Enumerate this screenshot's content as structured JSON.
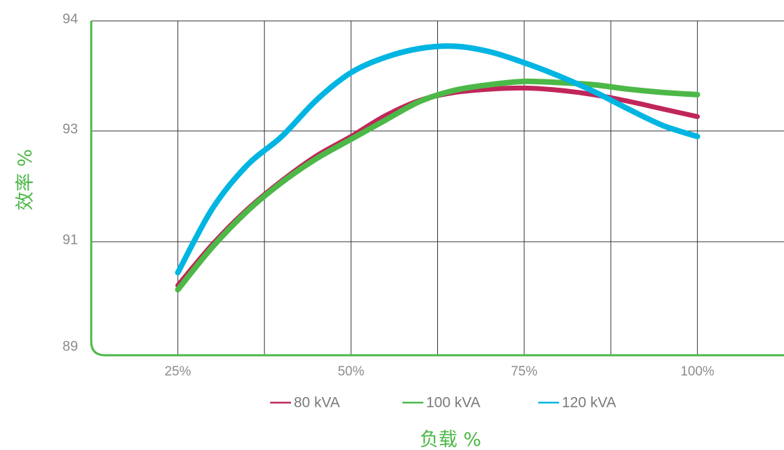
{
  "chart_data": {
    "type": "line",
    "title": "",
    "xlabel": "负载 %",
    "ylabel": "效率 %",
    "x": [
      25,
      50,
      75,
      100
    ],
    "x_tick_labels": [
      "25%",
      "50%",
      "75%",
      "100%"
    ],
    "y_tick_values": [
      89,
      91,
      93,
      94
    ],
    "y_tick_labels": [
      "89",
      "91",
      "93",
      "94"
    ],
    "xlim": [
      12.5,
      112.5
    ],
    "grid": true,
    "legend_position": "bottom",
    "series": [
      {
        "name": "80 kVA",
        "color": "#c0265a",
        "x": [
          25,
          30,
          35,
          40,
          45,
          50,
          55,
          60,
          65,
          70,
          75,
          80,
          85,
          90,
          95,
          100
        ],
        "y": [
          90.18,
          90.95,
          91.58,
          92.1,
          92.55,
          92.9,
          93.14,
          93.28,
          93.35,
          93.38,
          93.39,
          93.37,
          93.33,
          93.27,
          93.2,
          93.13
        ]
      },
      {
        "name": "100 kVA",
        "color": "#4cb847",
        "x": [
          25,
          30,
          35,
          40,
          45,
          50,
          55,
          60,
          65,
          70,
          75,
          80,
          85,
          90,
          95,
          100
        ],
        "y": [
          90.1,
          90.9,
          91.55,
          92.07,
          92.5,
          92.85,
          93.1,
          93.27,
          93.37,
          93.42,
          93.45,
          93.44,
          93.42,
          93.38,
          93.35,
          93.33
        ]
      },
      {
        "name": "120 kVA",
        "color": "#00b5e2",
        "x": [
          25,
          30,
          35,
          40,
          45,
          50,
          55,
          60,
          65,
          70,
          75,
          80,
          85,
          90,
          95,
          100
        ],
        "y": [
          90.42,
          91.6,
          92.38,
          92.9,
          93.28,
          93.53,
          93.67,
          93.75,
          93.77,
          93.72,
          93.62,
          93.5,
          93.36,
          93.2,
          93.05,
          92.9
        ]
      }
    ]
  },
  "colors": {
    "axis": "#4cb847",
    "grid": "#333333"
  }
}
